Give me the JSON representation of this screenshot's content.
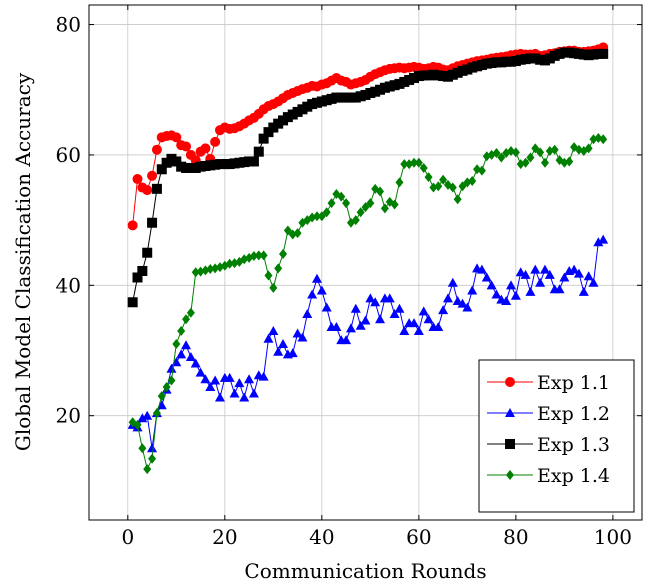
{
  "chart_data": {
    "type": "line",
    "title": "",
    "xlabel": "Communication Rounds",
    "ylabel": "Global Model Classification Accuracy",
    "xlim": [
      -8,
      106
    ],
    "ylim": [
      4,
      83
    ],
    "xticks": [
      0,
      20,
      40,
      60,
      80,
      100
    ],
    "yticks": [
      20,
      40,
      60,
      80
    ],
    "grid": true,
    "legend_position": "bottom-right",
    "series": [
      {
        "name": "Exp 1.1",
        "color": "#ff0000",
        "marker": "circle",
        "x": [
          1,
          2,
          3,
          4,
          5,
          6,
          7,
          8,
          9,
          10,
          11,
          12,
          13,
          14,
          15,
          16,
          17,
          18,
          19,
          20,
          21,
          22,
          23,
          24,
          25,
          26,
          27,
          28,
          29,
          30,
          31,
          32,
          33,
          34,
          35,
          36,
          37,
          38,
          39,
          40,
          41,
          42,
          43,
          44,
          45,
          46,
          47,
          48,
          49,
          50,
          51,
          52,
          53,
          54,
          55,
          56,
          57,
          58,
          59,
          60,
          61,
          62,
          63,
          64,
          65,
          66,
          67,
          68,
          69,
          70,
          71,
          72,
          73,
          74,
          75,
          76,
          77,
          78,
          79,
          80,
          81,
          82,
          83,
          84,
          85,
          86,
          87,
          88,
          89,
          90,
          91,
          92,
          93,
          94,
          95,
          96,
          97,
          98
        ],
        "y": [
          49.2,
          56.3,
          55.0,
          54.6,
          56.8,
          60.8,
          62.7,
          62.9,
          63.0,
          62.7,
          61.5,
          61.3,
          60.0,
          59.2,
          60.5,
          61.0,
          59.4,
          62.0,
          63.8,
          64.2,
          64.0,
          64.1,
          64.4,
          64.8,
          65.3,
          65.7,
          66.3,
          67.0,
          67.5,
          67.8,
          68.2,
          68.7,
          69.2,
          69.5,
          69.8,
          70.1,
          70.3,
          70.6,
          70.5,
          70.8,
          71.0,
          71.4,
          71.8,
          71.4,
          71.2,
          70.8,
          71.0,
          71.2,
          71.5,
          72.0,
          72.4,
          72.7,
          73.0,
          73.2,
          73.3,
          73.4,
          73.3,
          73.4,
          73.5,
          73.4,
          73.2,
          73.3,
          73.5,
          73.4,
          73.1,
          73.0,
          73.3,
          73.6,
          73.8,
          74.0,
          74.2,
          74.4,
          74.5,
          74.6,
          74.8,
          74.9,
          75.0,
          75.1,
          75.3,
          75.4,
          75.5,
          75.4,
          75.4,
          75.5,
          75.2,
          75.3,
          75.5,
          75.6,
          75.8,
          75.9,
          76.0,
          76.0,
          75.8,
          75.8,
          75.9,
          76.0,
          76.2,
          76.5
        ]
      },
      {
        "name": "Exp 1.2",
        "color": "#0000ff",
        "marker": "triangle",
        "x": [
          1,
          2,
          3,
          4,
          5,
          6,
          7,
          8,
          9,
          10,
          11,
          12,
          13,
          14,
          15,
          16,
          17,
          18,
          19,
          20,
          21,
          22,
          23,
          24,
          25,
          26,
          27,
          28,
          29,
          30,
          31,
          32,
          33,
          34,
          35,
          36,
          37,
          38,
          39,
          40,
          41,
          42,
          43,
          44,
          45,
          46,
          47,
          48,
          49,
          50,
          51,
          52,
          53,
          54,
          55,
          56,
          57,
          58,
          59,
          60,
          61,
          62,
          63,
          64,
          65,
          66,
          67,
          68,
          69,
          70,
          71,
          72,
          73,
          74,
          75,
          76,
          77,
          78,
          79,
          80,
          81,
          82,
          83,
          84,
          85,
          86,
          87,
          88,
          89,
          90,
          91,
          92,
          93,
          94,
          95,
          96,
          97,
          98
        ],
        "y": [
          18.6,
          18.2,
          19.6,
          20.0,
          15.0,
          20.4,
          21.6,
          24.0,
          27.2,
          28.2,
          29.4,
          30.8,
          29.0,
          28.0,
          26.6,
          25.6,
          24.4,
          25.4,
          22.8,
          25.8,
          25.8,
          23.4,
          25.0,
          22.8,
          25.6,
          23.4,
          26.2,
          26.0,
          31.8,
          33.0,
          29.8,
          31.0,
          29.4,
          29.6,
          32.6,
          32.0,
          35.6,
          38.6,
          41.0,
          39.2,
          36.6,
          33.6,
          33.6,
          31.6,
          31.6,
          33.4,
          36.4,
          33.8,
          34.6,
          38.0,
          37.4,
          34.8,
          38.0,
          38.0,
          35.6,
          36.4,
          33.0,
          34.2,
          34.2,
          33.0,
          36.0,
          34.8,
          33.6,
          33.6,
          36.2,
          38.0,
          40.4,
          37.6,
          37.2,
          36.6,
          39.2,
          42.6,
          42.4,
          41.2,
          40.0,
          38.6,
          37.8,
          37.6,
          40.0,
          38.4,
          42.0,
          41.6,
          39.0,
          42.4,
          40.4,
          42.4,
          41.6,
          39.4,
          39.4,
          41.2,
          42.2,
          42.4,
          41.8,
          39.0,
          41.4,
          40.4,
          46.6,
          47.0
        ]
      },
      {
        "name": "Exp 1.3",
        "color": "#000000",
        "marker": "square",
        "x": [
          1,
          2,
          3,
          4,
          5,
          6,
          7,
          8,
          9,
          10,
          11,
          12,
          13,
          14,
          15,
          16,
          17,
          18,
          19,
          20,
          21,
          22,
          23,
          24,
          25,
          26,
          27,
          28,
          29,
          30,
          31,
          32,
          33,
          34,
          35,
          36,
          37,
          38,
          39,
          40,
          41,
          42,
          43,
          44,
          45,
          46,
          47,
          48,
          49,
          50,
          51,
          52,
          53,
          54,
          55,
          56,
          57,
          58,
          59,
          60,
          61,
          62,
          63,
          64,
          65,
          66,
          67,
          68,
          69,
          70,
          71,
          72,
          73,
          74,
          75,
          76,
          77,
          78,
          79,
          80,
          81,
          82,
          83,
          84,
          85,
          86,
          87,
          88,
          89,
          90,
          91,
          92,
          93,
          94,
          95,
          96,
          97,
          98
        ],
        "y": [
          37.4,
          41.2,
          42.2,
          45.0,
          49.6,
          54.8,
          57.8,
          58.8,
          59.4,
          59.0,
          58.2,
          58.0,
          58.0,
          58.0,
          58.2,
          58.3,
          58.4,
          58.5,
          58.6,
          58.6,
          58.6,
          58.7,
          58.8,
          58.9,
          59.0,
          59.0,
          60.5,
          62.5,
          63.5,
          64.2,
          64.8,
          65.3,
          65.8,
          66.2,
          66.6,
          67.0,
          67.4,
          67.8,
          68.0,
          68.2,
          68.4,
          68.6,
          68.8,
          68.8,
          68.8,
          68.8,
          68.8,
          69.0,
          69.2,
          69.5,
          69.7,
          70.0,
          70.3,
          70.5,
          70.7,
          70.9,
          71.2,
          71.5,
          71.8,
          72.1,
          72.2,
          72.2,
          72.3,
          72.2,
          72.1,
          72.0,
          72.3,
          72.6,
          72.9,
          73.1,
          73.4,
          73.6,
          73.8,
          74.0,
          74.1,
          74.2,
          74.2,
          74.3,
          74.3,
          74.4,
          74.6,
          74.7,
          74.8,
          74.8,
          74.6,
          74.5,
          74.8,
          75.2,
          75.5,
          75.7,
          75.7,
          75.6,
          75.5,
          75.4,
          75.3,
          75.4,
          75.5,
          75.5
        ]
      },
      {
        "name": "Exp 1.4",
        "color": "#008000",
        "marker": "diamond",
        "x": [
          1,
          2,
          3,
          4,
          5,
          6,
          7,
          8,
          9,
          10,
          11,
          12,
          13,
          14,
          15,
          16,
          17,
          18,
          19,
          20,
          21,
          22,
          23,
          24,
          25,
          26,
          27,
          28,
          29,
          30,
          31,
          32,
          33,
          34,
          35,
          36,
          37,
          38,
          39,
          40,
          41,
          42,
          43,
          44,
          45,
          46,
          47,
          48,
          49,
          50,
          51,
          52,
          53,
          54,
          55,
          56,
          57,
          58,
          59,
          60,
          61,
          62,
          63,
          64,
          65,
          66,
          67,
          68,
          69,
          70,
          71,
          72,
          73,
          74,
          75,
          76,
          77,
          78,
          79,
          80,
          81,
          82,
          83,
          84,
          85,
          86,
          87,
          88,
          89,
          90,
          91,
          92,
          93,
          94,
          95,
          96,
          97,
          98
        ],
        "y": [
          19.0,
          18.6,
          15.0,
          11.8,
          13.4,
          20.4,
          23.0,
          24.4,
          25.4,
          31.0,
          33.0,
          34.8,
          35.8,
          42.0,
          42.1,
          42.3,
          42.5,
          42.6,
          42.8,
          43.0,
          43.3,
          43.4,
          43.6,
          44.0,
          44.2,
          44.5,
          44.6,
          44.6,
          41.5,
          39.6,
          42.6,
          44.8,
          48.4,
          47.8,
          48.0,
          49.6,
          50.0,
          50.4,
          50.6,
          50.6,
          51.2,
          52.6,
          54.0,
          53.6,
          52.6,
          49.6,
          50.0,
          51.2,
          52.0,
          52.6,
          54.8,
          54.4,
          51.8,
          52.8,
          52.4,
          55.8,
          58.6,
          58.6,
          58.8,
          58.8,
          58.0,
          56.6,
          55.0,
          55.2,
          56.2,
          55.4,
          55.0,
          53.2,
          55.2,
          55.8,
          56.0,
          57.8,
          57.6,
          59.8,
          60.0,
          60.3,
          59.6,
          60.3,
          60.6,
          60.4,
          58.6,
          58.8,
          59.6,
          61.0,
          60.4,
          58.8,
          60.6,
          60.8,
          59.2,
          58.8,
          59.0,
          61.2,
          60.8,
          60.6,
          61.0,
          62.4,
          62.6,
          62.4
        ]
      }
    ]
  }
}
